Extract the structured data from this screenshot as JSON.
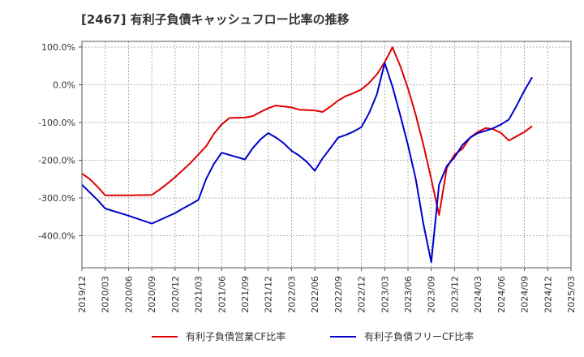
{
  "title": "[2467]  有利子負債キャッシュフロー比率の推移",
  "chart_data": {
    "type": "line",
    "ylim": [
      -485,
      115
    ],
    "yticks": [
      100,
      0,
      -100,
      -200,
      -300,
      -400
    ],
    "ytick_labels": [
      "100.0%",
      "0.0%",
      "-100.0%",
      "-200.0%",
      "-300.0%",
      "-400.0%"
    ],
    "x_start": "2019/12",
    "x_end": "2025/03",
    "xtick_labels": [
      "2019/12",
      "2020/03",
      "2020/06",
      "2020/09",
      "2020/12",
      "2021/03",
      "2021/06",
      "2021/09",
      "2021/12",
      "2022/03",
      "2022/06",
      "2022/09",
      "2022/12",
      "2023/03",
      "2023/06",
      "2023/09",
      "2023/12",
      "2024/03",
      "2024/06",
      "2024/09",
      "2024/12",
      "2025/03"
    ],
    "grid": true,
    "legend_position": "bottom",
    "series": [
      {
        "name": "有利子負債営業CF比率",
        "color": "#e00000",
        "points": [
          [
            "2019/12",
            -235
          ],
          [
            "2020/01",
            -250
          ],
          [
            "2020/02",
            -270
          ],
          [
            "2020/03",
            -293
          ],
          [
            "2020/06",
            -293
          ],
          [
            "2020/09",
            -292
          ],
          [
            "2020/10",
            -278
          ],
          [
            "2020/11",
            -262
          ],
          [
            "2020/12",
            -245
          ],
          [
            "2021/01",
            -226
          ],
          [
            "2021/02",
            -207
          ],
          [
            "2021/03",
            -185
          ],
          [
            "2021/04",
            -163
          ],
          [
            "2021/05",
            -130
          ],
          [
            "2021/06",
            -105
          ],
          [
            "2021/07",
            -88
          ],
          [
            "2021/09",
            -87
          ],
          [
            "2021/10",
            -83
          ],
          [
            "2021/11",
            -72
          ],
          [
            "2021/12",
            -62
          ],
          [
            "2022/01",
            -55
          ],
          [
            "2022/03",
            -60
          ],
          [
            "2022/04",
            -66
          ],
          [
            "2022/06",
            -68
          ],
          [
            "2022/07",
            -72
          ],
          [
            "2022/08",
            -58
          ],
          [
            "2022/09",
            -42
          ],
          [
            "2022/10",
            -30
          ],
          [
            "2022/11",
            -22
          ],
          [
            "2022/12",
            -12
          ],
          [
            "2023/01",
            5
          ],
          [
            "2023/02",
            28
          ],
          [
            "2023/03",
            60
          ],
          [
            "2023/04",
            99
          ],
          [
            "2023/05",
            50
          ],
          [
            "2023/06",
            -10
          ],
          [
            "2023/07",
            -80
          ],
          [
            "2023/08",
            -160
          ],
          [
            "2023/09",
            -250
          ],
          [
            "2023/10",
            -345
          ],
          [
            "2023/11",
            -220
          ],
          [
            "2023/12",
            -185
          ],
          [
            "2024/01",
            -170
          ],
          [
            "2024/02",
            -140
          ],
          [
            "2024/03",
            -125
          ],
          [
            "2024/04",
            -115
          ],
          [
            "2024/05",
            -118
          ],
          [
            "2024/06",
            -128
          ],
          [
            "2024/07",
            -148
          ],
          [
            "2024/09",
            -125
          ],
          [
            "2024/10",
            -110
          ]
        ]
      },
      {
        "name": "有利子負債フリーCF比率",
        "color": "#0000cc",
        "points": [
          [
            "2019/12",
            -265
          ],
          [
            "2020/01",
            -285
          ],
          [
            "2020/02",
            -305
          ],
          [
            "2020/03",
            -328
          ],
          [
            "2020/06",
            -347
          ],
          [
            "2020/09",
            -368
          ],
          [
            "2020/12",
            -340
          ],
          [
            "2021/01",
            -328
          ],
          [
            "2021/02",
            -317
          ],
          [
            "2021/03",
            -305
          ],
          [
            "2021/04",
            -250
          ],
          [
            "2021/05",
            -210
          ],
          [
            "2021/06",
            -180
          ],
          [
            "2021/09",
            -198
          ],
          [
            "2021/10",
            -168
          ],
          [
            "2021/11",
            -145
          ],
          [
            "2021/12",
            -128
          ],
          [
            "2022/01",
            -140
          ],
          [
            "2022/02",
            -155
          ],
          [
            "2022/03",
            -175
          ],
          [
            "2022/04",
            -188
          ],
          [
            "2022/05",
            -205
          ],
          [
            "2022/06",
            -228
          ],
          [
            "2022/07",
            -195
          ],
          [
            "2022/08",
            -168
          ],
          [
            "2022/09",
            -140
          ],
          [
            "2022/10",
            -133
          ],
          [
            "2022/11",
            -124
          ],
          [
            "2022/12",
            -112
          ],
          [
            "2023/01",
            -75
          ],
          [
            "2023/02",
            -25
          ],
          [
            "2023/03",
            58
          ],
          [
            "2023/04",
            -5
          ],
          [
            "2023/05",
            -80
          ],
          [
            "2023/06",
            -160
          ],
          [
            "2023/07",
            -250
          ],
          [
            "2023/08",
            -370
          ],
          [
            "2023/09",
            -470
          ],
          [
            "2023/10",
            -265
          ],
          [
            "2023/11",
            -215
          ],
          [
            "2023/12",
            -192
          ],
          [
            "2024/01",
            -160
          ],
          [
            "2024/02",
            -140
          ],
          [
            "2024/03",
            -128
          ],
          [
            "2024/04",
            -122
          ],
          [
            "2024/05",
            -115
          ],
          [
            "2024/06",
            -105
          ],
          [
            "2024/07",
            -92
          ],
          [
            "2024/08",
            -55
          ],
          [
            "2024/09",
            -15
          ],
          [
            "2024/10",
            20
          ]
        ]
      }
    ]
  }
}
